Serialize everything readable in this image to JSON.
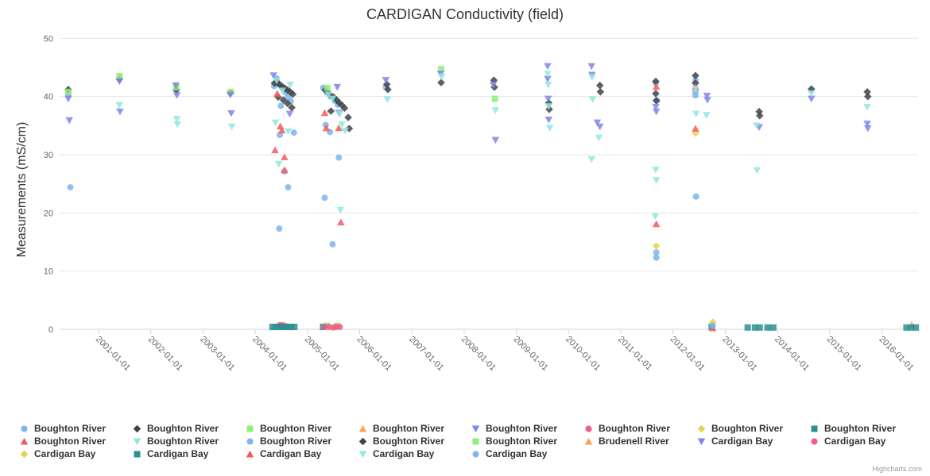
{
  "page": {
    "credit": "Highcharts.com"
  },
  "chart": {
    "title": "CARDIGAN Conductivity (field)",
    "y_axis": {
      "title": "Measurements (mS/cm)",
      "tick_labels": [
        "0",
        "10",
        "20",
        "30",
        "40",
        "50"
      ],
      "min": 0,
      "max": 50,
      "tick_interval": 10
    },
    "x_axis": {
      "tick_labels": [
        "2001-01-01",
        "2002-01-01",
        "2003-01-01",
        "2004-01-01",
        "2005-01-01",
        "2006-01-01",
        "2007-01-01",
        "2008-01-01",
        "2009-01-01",
        "2010-01-01",
        "2011-01-01",
        "2012-01-01",
        "2013-01-01",
        "2014-01-01",
        "2015-01-01",
        "2016-01-01"
      ],
      "start_year": 2001,
      "label_rotation": 45
    },
    "colors": {
      "blue": "#7cb5ec",
      "black": "#434348",
      "green": "#90ed7d",
      "orange": "#f7a35c",
      "indigo": "#8085e9",
      "pink": "#f15c80",
      "yellow": "#e4d354",
      "teal": "#2b908f",
      "red": "#f45b5b",
      "cyan": "#91e8e1",
      "grid": "#e6e6e6",
      "axis_line": "#ccd6eb",
      "tick_text": "#666666"
    }
  },
  "chart_data": {
    "type": "scatter",
    "x_unit": "decimal_year",
    "x_range": [
      2000.25,
      2016.9
    ],
    "y_range": [
      0,
      50
    ],
    "grid": "horizontal-only",
    "legend_position": "bottom",
    "series": [
      {
        "name": "Boughton River",
        "color": "#7cb5ec",
        "symbol": "circle",
        "data": [
          [
            2000.42,
            40.4
          ],
          [
            2000.46,
            24.4
          ],
          [
            2004.41,
            43.1
          ],
          [
            2004.36,
            41.8
          ],
          [
            2004.46,
            42.1
          ],
          [
            2004.52,
            41.4
          ],
          [
            2004.58,
            40.7
          ],
          [
            2004.63,
            39.9
          ],
          [
            2004.68,
            39.2
          ],
          [
            2004.49,
            38.4
          ],
          [
            2004.47,
            33.4
          ],
          [
            2004.74,
            33.8
          ],
          [
            2004.56,
            27.1
          ],
          [
            2004.63,
            24.4
          ],
          [
            2004.46,
            17.3
          ],
          [
            2005.3,
            41.5
          ],
          [
            2005.37,
            40.7
          ],
          [
            2005.44,
            40.0
          ],
          [
            2005.52,
            39.3
          ],
          [
            2005.58,
            38.6
          ],
          [
            2005.35,
            35.1
          ],
          [
            2005.43,
            33.9
          ],
          [
            2005.6,
            29.5
          ],
          [
            2005.33,
            22.6
          ],
          [
            2005.48,
            14.6
          ],
          [
            2006.5,
            41.6
          ],
          [
            2011.67,
            42.3
          ],
          [
            2011.69,
            39.3
          ],
          [
            2011.68,
            13.2
          ],
          [
            2011.68,
            12.3
          ],
          [
            2012.43,
            42.8
          ],
          [
            2012.43,
            40.8
          ],
          [
            2012.43,
            40.2
          ],
          [
            2012.44,
            22.8
          ]
        ]
      },
      {
        "name": "Boughton River",
        "color": "#434348",
        "symbol": "diamond",
        "data": [
          [
            2000.42,
            41.2
          ],
          [
            2001.4,
            43.0
          ],
          [
            2002.49,
            41.1
          ],
          [
            2003.53,
            40.6
          ],
          [
            2004.37,
            42.3
          ],
          [
            2004.42,
            42.5
          ],
          [
            2004.47,
            42.0
          ],
          [
            2004.52,
            41.7
          ],
          [
            2004.57,
            41.4
          ],
          [
            2004.62,
            41.1
          ],
          [
            2004.67,
            40.8
          ],
          [
            2004.72,
            40.4
          ],
          [
            2004.44,
            39.9
          ],
          [
            2004.54,
            39.4
          ],
          [
            2004.62,
            38.8
          ],
          [
            2004.7,
            38.1
          ],
          [
            2005.34,
            41.1
          ],
          [
            2005.42,
            40.4
          ],
          [
            2005.5,
            39.9
          ],
          [
            2005.56,
            39.4
          ],
          [
            2005.61,
            38.9
          ],
          [
            2005.66,
            38.5
          ],
          [
            2005.71,
            38.0
          ],
          [
            2005.45,
            37.5
          ],
          [
            2005.78,
            36.4
          ],
          [
            2005.8,
            34.5
          ],
          [
            2006.52,
            42.1
          ],
          [
            2006.54,
            41.2
          ],
          [
            2007.56,
            42.4
          ],
          [
            2008.57,
            42.8
          ],
          [
            2008.58,
            41.6
          ],
          [
            2009.62,
            38.9
          ],
          [
            2009.63,
            37.8
          ],
          [
            2010.6,
            41.9
          ],
          [
            2010.61,
            40.8
          ],
          [
            2011.67,
            42.6
          ],
          [
            2011.67,
            40.5
          ],
          [
            2011.68,
            39.3
          ],
          [
            2012.43,
            43.6
          ],
          [
            2012.43,
            42.3
          ],
          [
            2013.65,
            37.4
          ],
          [
            2013.66,
            36.7
          ],
          [
            2014.65,
            41.3
          ],
          [
            2015.72,
            40.8
          ],
          [
            2015.73,
            40.0
          ]
        ]
      },
      {
        "name": "Boughton River",
        "color": "#90ed7d",
        "symbol": "square",
        "data": [
          [
            2000.42,
            40.8
          ],
          [
            2001.4,
            43.5
          ],
          [
            2002.49,
            41.6
          ],
          [
            2003.53,
            40.8
          ],
          [
            2005.38,
            41.5
          ],
          [
            2007.56,
            44.7
          ],
          [
            2008.59,
            39.6
          ],
          [
            2005.37,
            0.6
          ],
          [
            2005.57,
            0.6
          ]
        ]
      },
      {
        "name": "Boughton River",
        "color": "#f7a35c",
        "symbol": "triangle",
        "data": []
      },
      {
        "name": "Boughton River",
        "color": "#8085e9",
        "symbol": "triangle-down",
        "data": [
          [
            2000.42,
            39.6
          ],
          [
            2000.44,
            35.9
          ],
          [
            2001.4,
            42.6
          ],
          [
            2001.41,
            37.4
          ],
          [
            2002.48,
            41.9
          ],
          [
            2002.5,
            40.2
          ],
          [
            2003.52,
            40.3
          ],
          [
            2003.54,
            37.1
          ],
          [
            2004.35,
            43.6
          ],
          [
            2004.66,
            37.0
          ],
          [
            2005.57,
            41.6
          ],
          [
            2005.6,
            37.2
          ],
          [
            2006.5,
            42.8
          ],
          [
            2007.55,
            43.9
          ],
          [
            2008.56,
            42.0
          ],
          [
            2008.6,
            32.5
          ],
          [
            2009.6,
            45.2
          ],
          [
            2009.6,
            43.0
          ],
          [
            2009.61,
            39.6
          ],
          [
            2009.62,
            36.0
          ],
          [
            2010.44,
            45.2
          ],
          [
            2010.45,
            43.7
          ],
          [
            2010.55,
            35.5
          ],
          [
            2010.6,
            34.8
          ],
          [
            2011.67,
            38.2
          ],
          [
            2011.68,
            37.4
          ],
          [
            2012.65,
            40.1
          ],
          [
            2012.66,
            39.4
          ],
          [
            2013.65,
            34.7
          ],
          [
            2014.65,
            39.6
          ],
          [
            2015.72,
            35.3
          ],
          [
            2015.73,
            34.5
          ]
        ]
      },
      {
        "name": "Boughton River",
        "color": "#f15c80",
        "symbol": "circle",
        "data": [
          [
            2004.47,
            0.7
          ],
          [
            2004.53,
            0.7
          ],
          [
            2004.59,
            0.5
          ]
        ]
      },
      {
        "name": "Boughton River",
        "color": "#e4d354",
        "symbol": "diamond",
        "data": [
          [
            2012.43,
            33.7
          ],
          [
            2011.68,
            14.3
          ]
        ]
      },
      {
        "name": "Boughton River",
        "color": "#2b908f",
        "symbol": "square",
        "data": [
          [
            2004.33,
            0.4
          ],
          [
            2004.39,
            0.4
          ],
          [
            2004.45,
            0.4
          ],
          [
            2004.51,
            0.4
          ],
          [
            2004.57,
            0.4
          ],
          [
            2004.63,
            0.4
          ],
          [
            2004.69,
            0.4
          ],
          [
            2004.75,
            0.4
          ],
          [
            2005.3,
            0.4
          ]
        ]
      },
      {
        "name": "Boughton River",
        "color": "#f45b5b",
        "symbol": "triangle",
        "data": [
          [
            2004.42,
            40.5
          ],
          [
            2004.48,
            34.9
          ],
          [
            2004.51,
            34.2
          ],
          [
            2004.38,
            30.8
          ],
          [
            2004.56,
            29.6
          ],
          [
            2004.56,
            27.4
          ],
          [
            2005.33,
            37.2
          ],
          [
            2005.36,
            34.6
          ],
          [
            2005.6,
            34.6
          ],
          [
            2005.64,
            18.4
          ],
          [
            2011.68,
            41.7
          ],
          [
            2011.68,
            18.1
          ],
          [
            2012.43,
            41.7
          ],
          [
            2012.43,
            34.5
          ]
        ]
      },
      {
        "name": "Boughton River",
        "color": "#91e8e1",
        "symbol": "triangle-down",
        "data": [
          [
            2001.4,
            38.5
          ],
          [
            2002.5,
            36.1
          ],
          [
            2002.51,
            35.2
          ],
          [
            2003.55,
            34.8
          ],
          [
            2004.41,
            42.7
          ],
          [
            2004.67,
            42.0
          ],
          [
            2004.52,
            41.0
          ],
          [
            2004.39,
            35.5
          ],
          [
            2004.63,
            34.0
          ],
          [
            2004.45,
            28.4
          ],
          [
            2005.4,
            40.3
          ],
          [
            2005.48,
            39.6
          ],
          [
            2005.62,
            37.0
          ],
          [
            2005.66,
            35.2
          ],
          [
            2005.72,
            34.1
          ],
          [
            2005.63,
            20.5
          ],
          [
            2006.53,
            39.5
          ],
          [
            2007.57,
            43.4
          ],
          [
            2008.6,
            37.6
          ],
          [
            2009.6,
            43.9
          ],
          [
            2009.61,
            42.0
          ],
          [
            2009.62,
            38.3
          ],
          [
            2009.64,
            34.6
          ],
          [
            2010.45,
            43.3
          ],
          [
            2010.46,
            39.5
          ],
          [
            2010.58,
            32.9
          ],
          [
            2010.44,
            29.2
          ],
          [
            2011.67,
            27.4
          ],
          [
            2011.68,
            25.6
          ],
          [
            2011.66,
            19.4
          ],
          [
            2012.43,
            41.3
          ],
          [
            2012.44,
            37.0
          ],
          [
            2012.64,
            36.8
          ],
          [
            2014.65,
            40.5
          ]
        ]
      },
      {
        "name": "Boughton River",
        "color": "#7cb5ec",
        "symbol": "circle",
        "data": []
      },
      {
        "name": "Boughton River",
        "color": "#434348",
        "symbol": "diamond",
        "data": []
      },
      {
        "name": "Boughton River",
        "color": "#90ed7d",
        "symbol": "square",
        "data": []
      },
      {
        "name": "Brudenell River",
        "color": "#f7a35c",
        "symbol": "triangle",
        "data": [
          [
            2016.57,
            0.8
          ]
        ]
      },
      {
        "name": "Cardigan Bay",
        "color": "#8085e9",
        "symbol": "triangle-down",
        "data": []
      },
      {
        "name": "Cardigan Bay",
        "color": "#f15c80",
        "symbol": "circle",
        "data": [
          [
            2005.33,
            0.4
          ],
          [
            2005.41,
            0.4
          ],
          [
            2005.49,
            0.3
          ],
          [
            2005.55,
            0.4
          ],
          [
            2005.62,
            0.4
          ]
        ]
      },
      {
        "name": "Cardigan Bay",
        "color": "#e4d354",
        "symbol": "diamond",
        "data": [
          [
            2012.76,
            1.2
          ]
        ]
      },
      {
        "name": "Cardigan Bay",
        "color": "#2b908f",
        "symbol": "square",
        "data": [
          [
            2012.74,
            0.4
          ],
          [
            2013.43,
            0.3
          ],
          [
            2013.57,
            0.3
          ],
          [
            2013.66,
            0.3
          ],
          [
            2013.81,
            0.3
          ],
          [
            2013.92,
            0.3
          ],
          [
            2016.47,
            0.3
          ],
          [
            2016.56,
            0.3
          ],
          [
            2016.65,
            0.3
          ]
        ]
      },
      {
        "name": "Cardigan Bay",
        "color": "#f45b5b",
        "symbol": "triangle",
        "data": [
          [
            2012.76,
            0.2
          ]
        ]
      },
      {
        "name": "Cardigan Bay",
        "color": "#91e8e1",
        "symbol": "triangle-down",
        "data": [
          [
            2013.6,
            35.0
          ],
          [
            2013.61,
            27.3
          ],
          [
            2015.72,
            38.2
          ]
        ]
      },
      {
        "name": "Cardigan Bay",
        "color": "#7cb5ec",
        "symbol": "circle",
        "data": [
          [
            2012.76,
            0.6
          ]
        ]
      }
    ]
  }
}
